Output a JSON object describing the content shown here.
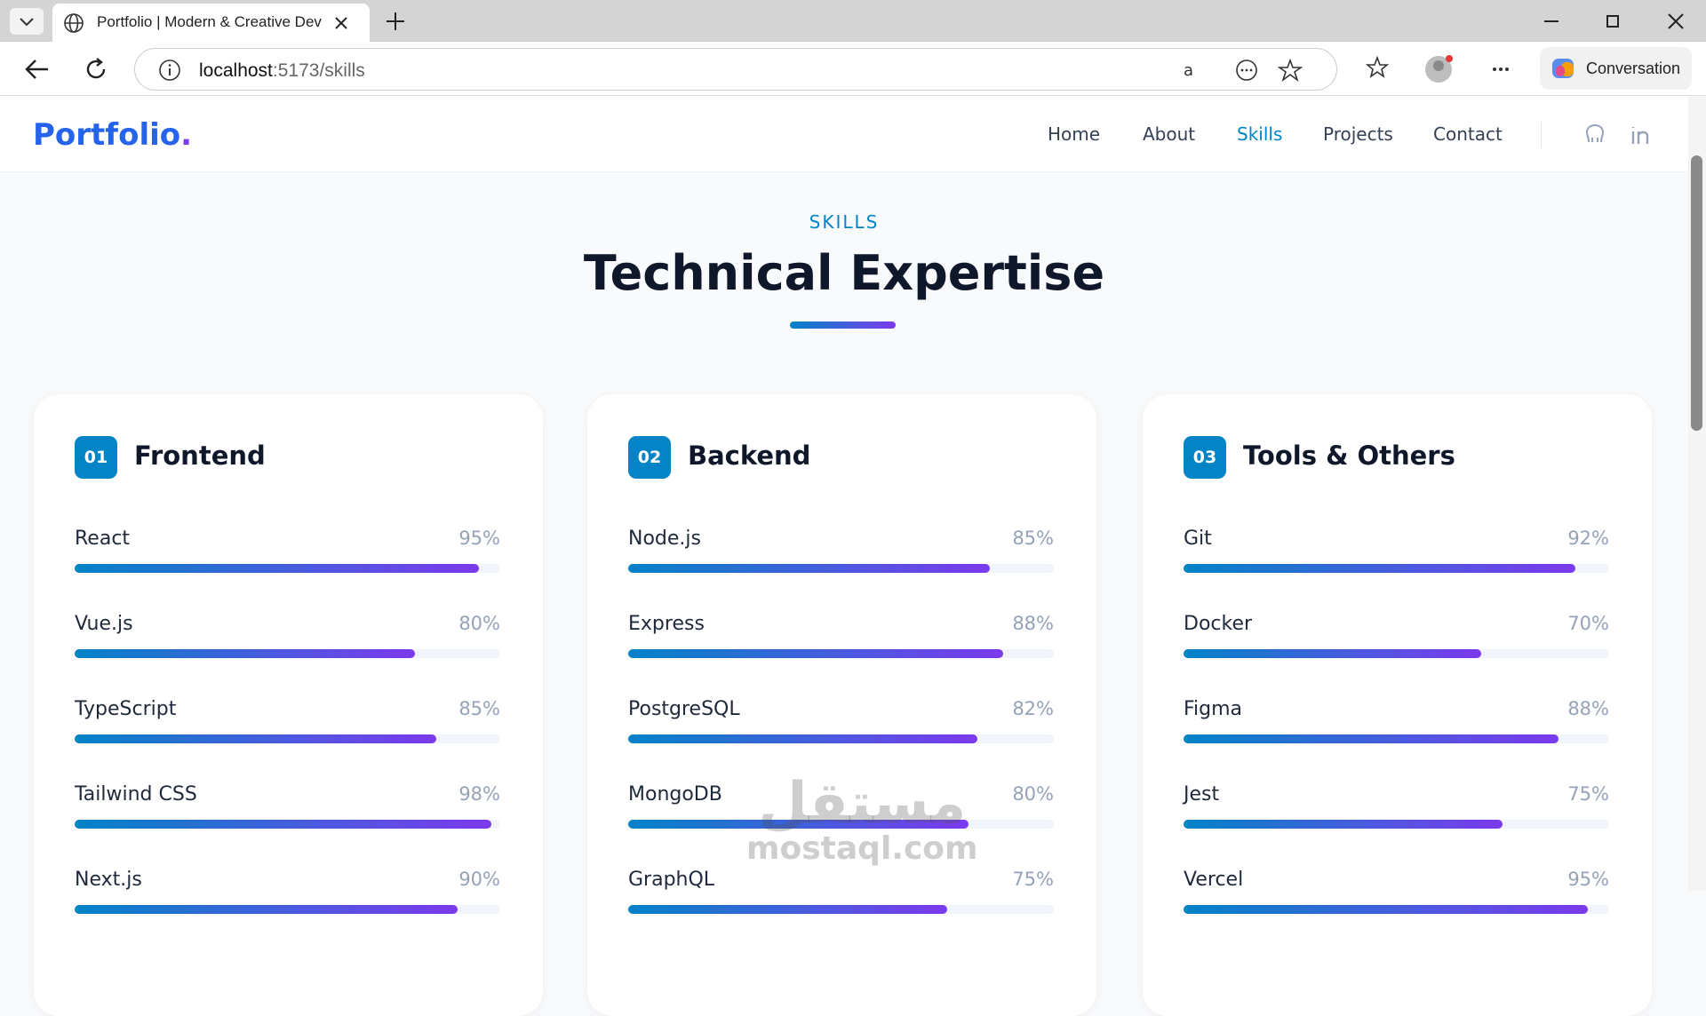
{
  "browser": {
    "tab_title": "Portfolio | Modern & Creative Dev",
    "url_host": "localhost",
    "url_path": ":5173/skills",
    "copilot": "Conversation"
  },
  "nav": {
    "logo": "Portfolio",
    "logo_dot": ".",
    "links": [
      "Home",
      "About",
      "Skills",
      "Projects",
      "Contact"
    ],
    "active": 2
  },
  "section": {
    "eyebrow": "SKILLS",
    "title": "Technical Expertise"
  },
  "categories": [
    {
      "number": "01",
      "title": "Frontend",
      "skills": [
        {
          "name": "React",
          "level": 95,
          "label": "95%"
        },
        {
          "name": "Vue.js",
          "level": 80,
          "label": "80%"
        },
        {
          "name": "TypeScript",
          "level": 85,
          "label": "85%"
        },
        {
          "name": "Tailwind CSS",
          "level": 98,
          "label": "98%"
        },
        {
          "name": "Next.js",
          "level": 90,
          "label": "90%"
        }
      ]
    },
    {
      "number": "02",
      "title": "Backend",
      "skills": [
        {
          "name": "Node.js",
          "level": 85,
          "label": "85%"
        },
        {
          "name": "Express",
          "level": 88,
          "label": "88%"
        },
        {
          "name": "PostgreSQL",
          "level": 82,
          "label": "82%"
        },
        {
          "name": "MongoDB",
          "level": 80,
          "label": "80%"
        },
        {
          "name": "GraphQL",
          "level": 75,
          "label": "75%"
        }
      ]
    },
    {
      "number": "03",
      "title": "Tools & Others",
      "skills": [
        {
          "name": "Git",
          "level": 92,
          "label": "92%"
        },
        {
          "name": "Docker",
          "level": 70,
          "label": "70%"
        },
        {
          "name": "Figma",
          "level": 88,
          "label": "88%"
        },
        {
          "name": "Jest",
          "level": 75,
          "label": "75%"
        },
        {
          "name": "Vercel",
          "level": 95,
          "label": "95%"
        }
      ]
    }
  ],
  "watermark": {
    "arabic": "مستقل",
    "latin": "mostaql.com"
  }
}
